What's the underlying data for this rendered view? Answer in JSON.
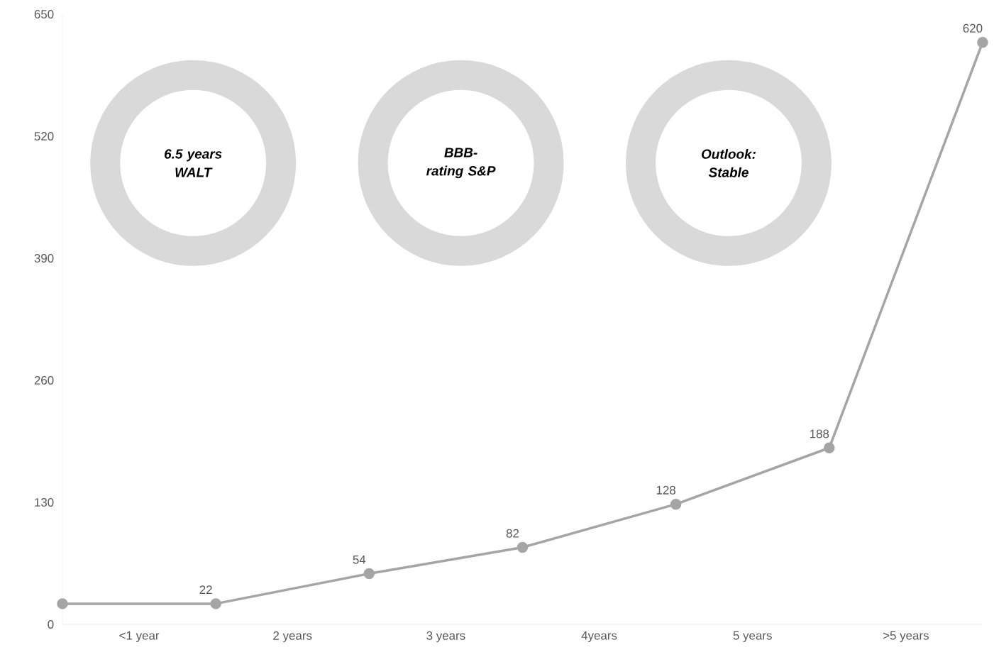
{
  "chart_data": {
    "type": "line",
    "xlim": [
      0,
      6
    ],
    "xticks": [
      {
        "value": 0.5,
        "label": "<1 year"
      },
      {
        "value": 1.5,
        "label": "2 years"
      },
      {
        "value": 2.5,
        "label": "3 years"
      },
      {
        "value": 3.5,
        "label": "4years"
      },
      {
        "value": 4.5,
        "label": "5 years"
      },
      {
        "value": 5.5,
        "label": ">5 years"
      }
    ],
    "series": [
      {
        "color": "#a5a5a5",
        "x": [
          0,
          1,
          2,
          3,
          4,
          5,
          6
        ],
        "values": [
          22,
          22,
          54,
          82,
          128,
          188,
          620
        ],
        "value_labels": [
          null,
          "22",
          "54",
          "82",
          "128",
          "188",
          "620"
        ]
      }
    ],
    "ylim": [
      0,
      650
    ],
    "yticks": [
      0,
      130,
      260,
      390,
      520,
      650
    ],
    "grid": false,
    "marker": "circle",
    "line_style": "solid",
    "annotations": [
      "6.5 years WALT",
      "BBB- rating S&P",
      "Outlook: Stable"
    ]
  }
}
